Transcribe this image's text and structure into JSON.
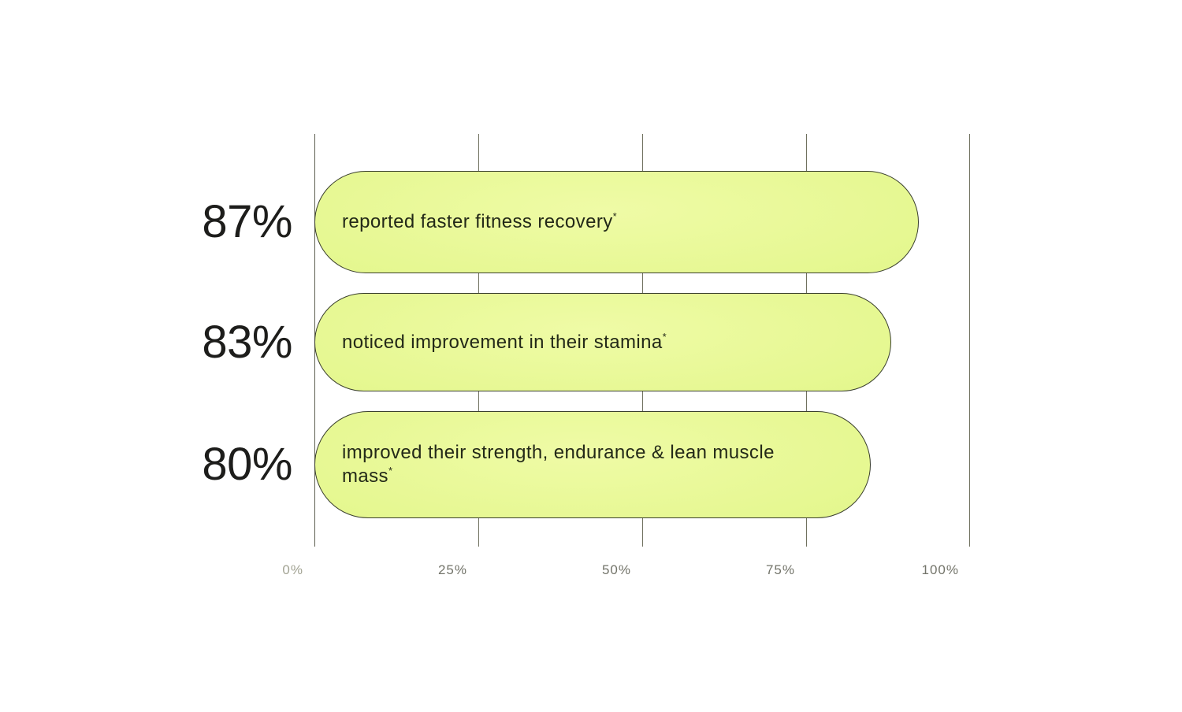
{
  "chart_data": {
    "type": "bar",
    "orientation": "horizontal",
    "title": "",
    "categories": [
      "reported faster fitness recovery*",
      "noticed improvement in their stamina*",
      "improved their strength, endurance & lean muscle mass*"
    ],
    "values": [
      87,
      83,
      80
    ],
    "value_labels": [
      "87%",
      "83%",
      "80%"
    ],
    "x_ticks": [
      "0%",
      "25%",
      "50%",
      "75%",
      "100%"
    ],
    "xlim": [
      0,
      100
    ],
    "grid": true,
    "legend": false,
    "colors": {
      "bar_fill": "#e4f78e",
      "bar_outline": "#3a3f2e",
      "bar_text": "#232918",
      "value_label": "#1d1d1b",
      "tick_label": "#73746a",
      "gridline": "#70715f",
      "background": "#ffffff"
    }
  },
  "bars": [
    {
      "value": 87,
      "value_label": "87%",
      "label": "reported faster fitness recovery",
      "footnote_marker": "*"
    },
    {
      "value": 83,
      "value_label": "83%",
      "label": "noticed improvement in their stamina",
      "footnote_marker": "*"
    },
    {
      "value": 80,
      "value_label": "80%",
      "label": "improved their strength, endurance & lean muscle mass",
      "footnote_marker": "*"
    }
  ],
  "axis": {
    "ticks": [
      "0%",
      "25%",
      "50%",
      "75%",
      "100%"
    ]
  }
}
